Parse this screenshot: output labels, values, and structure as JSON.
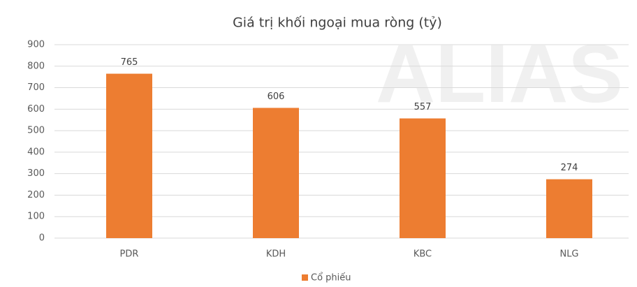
{
  "chart_data": {
    "type": "bar",
    "title": "Giá trị khối ngoại mua ròng (tỷ)",
    "watermark": "ALIAS",
    "categories": [
      "PDR",
      "KDH",
      "KBC",
      "NLG"
    ],
    "series": [
      {
        "name": "Cổ phiếu",
        "color": "#ed7d31",
        "values": [
          765,
          606,
          557,
          274
        ]
      }
    ],
    "ylim": [
      0,
      900
    ],
    "yticks": [
      0,
      100,
      200,
      300,
      400,
      500,
      600,
      700,
      800,
      900
    ],
    "grid": true,
    "legend": "bottom",
    "data_labels": true
  }
}
